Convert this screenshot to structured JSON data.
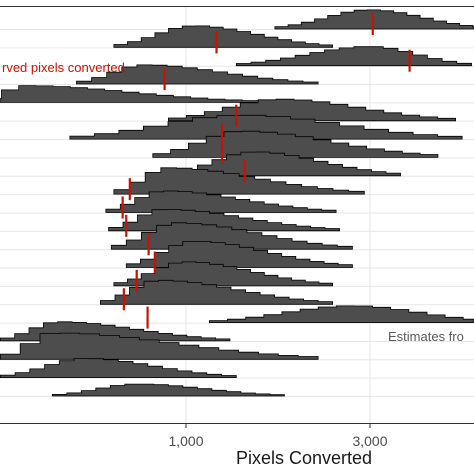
{
  "chart_data": {
    "type": "ridgeline",
    "scale": "log10",
    "xlabel": "Pixels Converted",
    "x_ticks": [
      {
        "value": 1000,
        "label": "1,000"
      },
      {
        "value": 3000,
        "label": "3,000"
      }
    ],
    "xlim": [
      300,
      5000
    ],
    "grid": true,
    "colors": {
      "ridge_fill": "#4d4d4d",
      "observed_marker": "#cc1100",
      "estimate_label": "#595959",
      "grid": "#e6e6e6"
    },
    "annotations": {
      "observed": "rved pixels converted",
      "estimates": "Estimates fro"
    },
    "rows": [
      {
        "start": 450,
        "end": 1800,
        "peak": 750,
        "height": 0.5,
        "observed": null
      },
      {
        "start": 330,
        "end": 1350,
        "peak": 550,
        "height": 0.8,
        "observed": null
      },
      {
        "start": 330,
        "end": 2200,
        "peak": 460,
        "height": 1.1,
        "observed": null
      },
      {
        "start": 330,
        "end": 1300,
        "peak": 470,
        "height": 0.8,
        "observed": 310
      },
      {
        "start": 1150,
        "end": 6500,
        "peak": 2700,
        "height": 0.7,
        "observed": 795
      },
      {
        "start": 600,
        "end": 2400,
        "peak": 850,
        "height": 1.0,
        "observed": 690
      },
      {
        "start": 650,
        "end": 2400,
        "peak": 1000,
        "height": 1.0,
        "observed": 745
      },
      {
        "start": 700,
        "end": 2700,
        "peak": 1050,
        "height": 1.1,
        "observed": 830
      },
      {
        "start": 640,
        "end": 2700,
        "peak": 950,
        "height": 1.1,
        "observed": 800
      },
      {
        "start": 630,
        "end": 2500,
        "peak": 880,
        "height": 0.9,
        "observed": 700
      },
      {
        "start": 620,
        "end": 2450,
        "peak": 880,
        "height": 0.9,
        "observed": 685
      },
      {
        "start": 650,
        "end": 2900,
        "peak": 900,
        "height": 1.1,
        "observed": 715
      },
      {
        "start": 900,
        "end": 3600,
        "peak": 1500,
        "height": 1.0,
        "observed": 1420
      },
      {
        "start": 820,
        "end": 4500,
        "peak": 1400,
        "height": 1.1,
        "observed": 1240
      },
      {
        "start": 500,
        "end": 5200,
        "peak": 1400,
        "height": 1.0,
        "observed": 1240
      },
      {
        "start": 900,
        "end": 5000,
        "peak": 1750,
        "height": 0.9,
        "observed": 1350
      },
      {
        "start": 300,
        "end": 1550,
        "peak": 380,
        "height": 0.7,
        "observed": 315
      },
      {
        "start": 520,
        "end": 2200,
        "peak": 780,
        "height": 0.8,
        "observed": 880
      },
      {
        "start": 1350,
        "end": 5500,
        "peak": 3000,
        "height": 0.8,
        "observed": 3800
      },
      {
        "start": 650,
        "end": 2400,
        "peak": 1050,
        "height": 0.9,
        "observed": 1200
      },
      {
        "start": 1700,
        "end": 6000,
        "peak": 3000,
        "height": 0.8,
        "observed": 3050
      }
    ]
  }
}
